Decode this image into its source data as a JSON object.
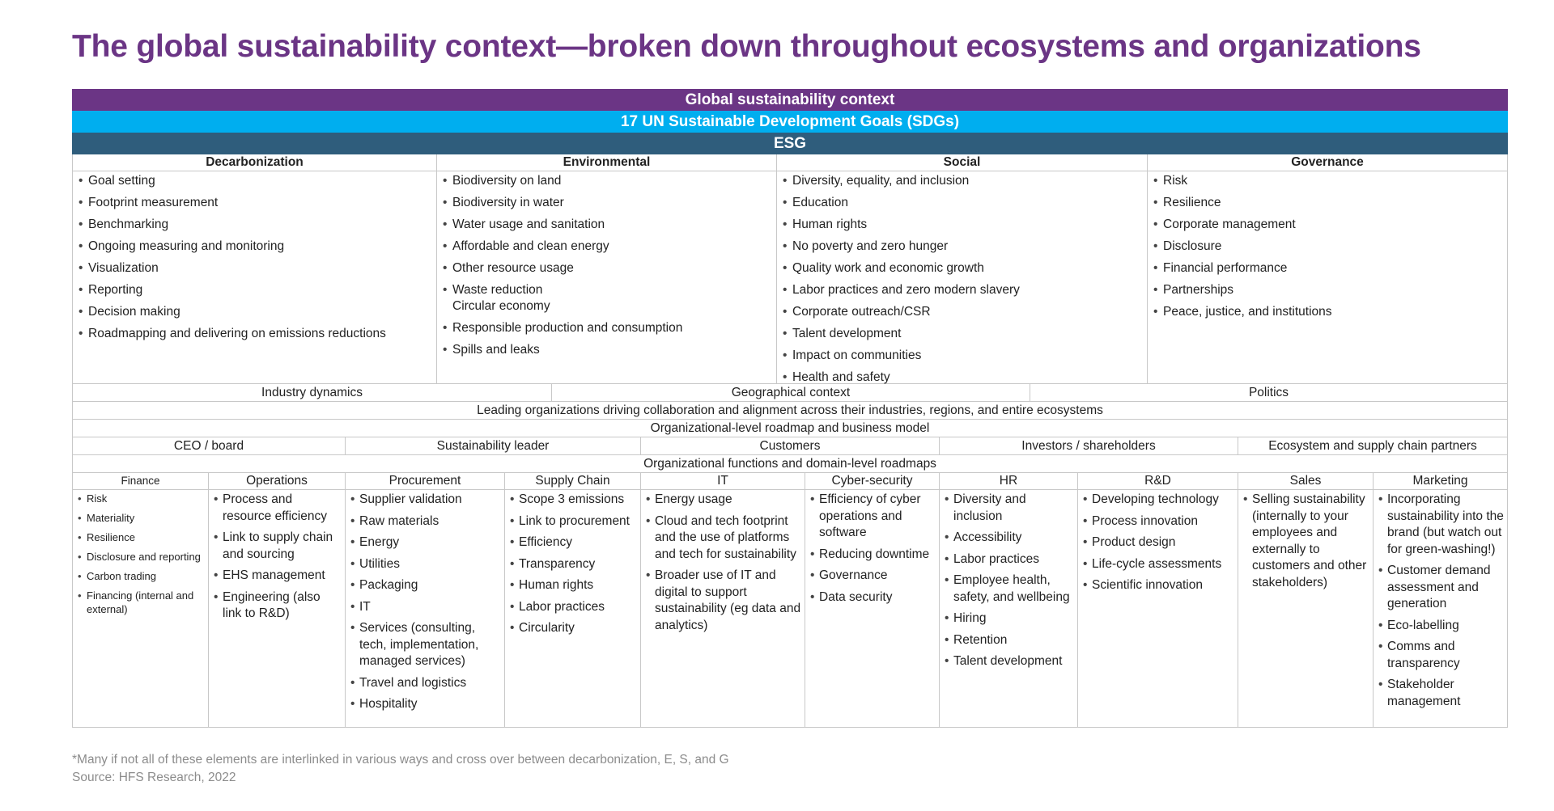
{
  "title": "The global sustainability context—broken down throughout ecosystems and organizations",
  "bands": {
    "global": "Global sustainability context",
    "sdg": "17 UN Sustainable Development Goals (SDGs)",
    "esg": "ESG"
  },
  "colors": {
    "title": "#6b3585",
    "global_band": "#6b3585",
    "sdg_band": "#00aeef",
    "esg_band": "#2f5d7c",
    "footnote": "#8c8c8c"
  },
  "esg_columns": [
    {
      "header": "Decarbonization",
      "items": [
        "Goal setting",
        "Footprint measurement",
        "Benchmarking",
        "Ongoing measuring and monitoring",
        "Visualization",
        "Reporting",
        "Decision making",
        "Roadmapping and delivering on emissions reductions"
      ]
    },
    {
      "header": "Environmental",
      "items": [
        "Biodiversity on land",
        "Biodiversity in water",
        "Water usage and sanitation",
        "Affordable and clean energy",
        "Other resource usage",
        "Waste reduction\nCircular economy",
        "Responsible production and consumption",
        "Spills and leaks"
      ]
    },
    {
      "header": "Social",
      "items": [
        "Diversity, equality, and inclusion",
        "Education",
        "Human rights",
        "No poverty and zero hunger",
        "Quality work and economic growth",
        "Labor practices and zero modern slavery",
        "Corporate outreach/CSR",
        "Talent development",
        "Impact on communities",
        "Health and safety"
      ]
    },
    {
      "header": "Governance",
      "items": [
        "Risk",
        "Resilience",
        "Corporate management",
        "Disclosure",
        "Financial performance",
        "Partnerships",
        "Peace, justice, and institutions"
      ]
    }
  ],
  "context_row": [
    "Industry dynamics",
    "Geographical context",
    "Politics"
  ],
  "ecosystem_line": "Leading organizations driving collaboration and alignment across their industries, regions, and entire ecosystems",
  "org_roadmap_line": "Organizational-level roadmap and business model",
  "stakeholders": [
    "CEO / board",
    "Sustainability leader",
    "Customers",
    "Investors / shareholders",
    "Ecosystem and supply chain partners"
  ],
  "functions_line": "Organizational functions and domain-level roadmaps",
  "functions": [
    {
      "header": "Finance",
      "items": [
        "Risk",
        "Materiality",
        "Resilience",
        "Disclosure and reporting",
        "Carbon trading",
        "Financing (internal and external)"
      ]
    },
    {
      "header": "Operations",
      "items": [
        "Process and resource efficiency",
        "Link to supply chain and sourcing",
        "EHS management",
        "Engineering (also link to R&D)"
      ]
    },
    {
      "header": "Procurement",
      "items": [
        "Supplier validation",
        "Raw materials",
        "Energy",
        "Utilities",
        "Packaging",
        "IT",
        "Services (consulting, tech, implementation, managed services)",
        "Travel and logistics",
        "Hospitality"
      ]
    },
    {
      "header": "Supply Chain",
      "items": [
        "Scope 3 emissions",
        "Link to procurement",
        "Efficiency",
        "Transparency",
        "Human rights",
        "Labor practices",
        "Circularity"
      ]
    },
    {
      "header": "IT",
      "items": [
        "Energy usage",
        "Cloud and tech footprint and the use of platforms and tech for sustainability",
        "Broader use of IT and digital to support sustainability (eg data and analytics)"
      ]
    },
    {
      "header": "Cyber-security",
      "items": [
        "Efficiency of cyber operations and software",
        "Reducing downtime",
        "Governance",
        "Data security"
      ]
    },
    {
      "header": "HR",
      "items": [
        "Diversity and inclusion",
        "Accessibility",
        "Labor practices",
        "Employee health, safety, and wellbeing",
        "Hiring",
        "Retention",
        "Talent development"
      ]
    },
    {
      "header": "R&D",
      "items": [
        "Developing technology",
        "Process innovation",
        "Product design",
        "Life-cycle assessments",
        "Scientific innovation"
      ]
    },
    {
      "header": "Sales",
      "items": [
        "Selling sustainability (internally to your employees and externally to customers and other stakeholders)"
      ]
    },
    {
      "header": "Marketing",
      "items": [
        "Incorporating sustainability into the brand (but watch out for green-washing!)",
        "Customer demand assessment and generation",
        "Eco-labelling",
        "Comms and transparency",
        "Stakeholder management"
      ]
    }
  ],
  "footnote": "*Many if not all of these elements are interlinked in various ways and cross over between decarbonization, E, S, and G",
  "source": "Source:  HFS Research, 2022"
}
